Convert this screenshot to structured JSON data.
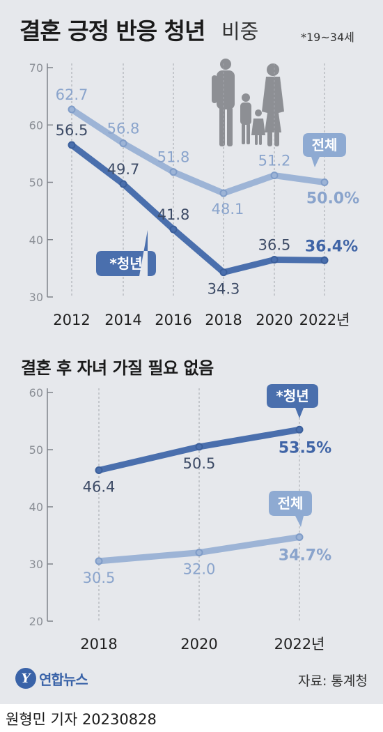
{
  "title": "결혼 긍정 반응 청년",
  "title_suffix": "비중",
  "note": "*19~34세",
  "subtitle": "결혼 후 자녀 가질 필요 없음",
  "source": "자료: 통계청",
  "logo": {
    "mark": "Y",
    "text": "연합뉴스"
  },
  "credit": "원형민 기자  20230828",
  "colors": {
    "background": "#e6e8ec",
    "overall": "#9db4d6",
    "youth": "#4a6fad",
    "overall_label": "#8aa4cc",
    "youth_label": "#3f64a6"
  },
  "chart_data": [
    {
      "type": "line",
      "title": "결혼 긍정 반응 청년 비중",
      "categories": [
        "2012",
        "2014",
        "2016",
        "2018",
        "2020",
        "2022년"
      ],
      "ylim": [
        30,
        70
      ],
      "yticks": [
        "30",
        "40",
        "50",
        "60",
        "70"
      ],
      "grid": false,
      "series": [
        {
          "name": "전체",
          "values": [
            62.7,
            56.8,
            51.8,
            48.1,
            51.2,
            50.0
          ],
          "labels": [
            "62.7",
            "56.8",
            "51.8",
            "48.1",
            "51.2",
            "50.0%"
          ]
        },
        {
          "name": "*청년",
          "values": [
            56.5,
            49.7,
            41.8,
            34.3,
            36.5,
            36.4
          ],
          "labels": [
            "56.5",
            "49.7",
            "41.8",
            "34.3",
            "36.5",
            "36.4%"
          ]
        }
      ]
    },
    {
      "type": "line",
      "title": "결혼 후 자녀 가질 필요 없음",
      "categories": [
        "2018",
        "2020",
        "2022년"
      ],
      "ylim": [
        20,
        60
      ],
      "yticks": [
        "20",
        "30",
        "40",
        "50",
        "60"
      ],
      "grid": false,
      "series": [
        {
          "name": "*청년",
          "values": [
            46.4,
            50.5,
            53.5
          ],
          "labels": [
            "46.4",
            "50.5",
            "53.5%"
          ]
        },
        {
          "name": "전체",
          "values": [
            30.5,
            32.0,
            34.7
          ],
          "labels": [
            "30.5",
            "32.0",
            "34.7%"
          ]
        }
      ]
    }
  ]
}
